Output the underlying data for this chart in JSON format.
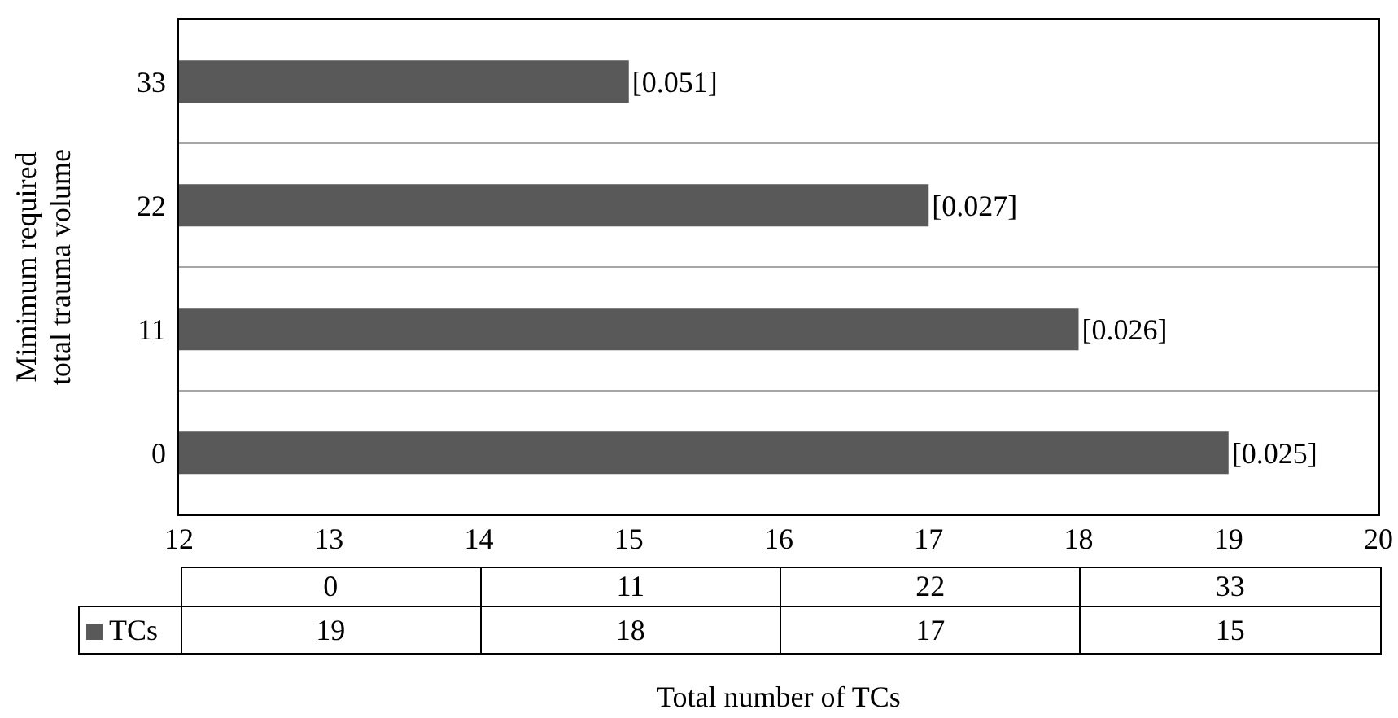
{
  "chart_data": {
    "type": "bar",
    "orientation": "horizontal",
    "xlabel": "Total number of TCs",
    "ylabel": "Mimimum required\ntotal trauma volume",
    "categories": [
      "33",
      "22",
      "11",
      "0"
    ],
    "series": [
      {
        "name": "TCs",
        "color": "#595959",
        "values": [
          15,
          17,
          18,
          19
        ]
      }
    ],
    "xlim": [
      12,
      20
    ],
    "xticks": [
      12,
      13,
      14,
      15,
      16,
      17,
      18,
      19,
      20
    ],
    "grid": "y",
    "legend": "bottom left",
    "annotations": [
      {
        "text": "[0.051]",
        "x": 15,
        "y": "33"
      },
      {
        "text": "[0.027]",
        "x": 17,
        "y": "22"
      },
      {
        "text": "[0.026]",
        "x": 18,
        "y": "11"
      },
      {
        "text": "[0.025]",
        "x": 19,
        "y": "0"
      },
      "19",
      "18",
      "17",
      "15"
    ]
  }
}
